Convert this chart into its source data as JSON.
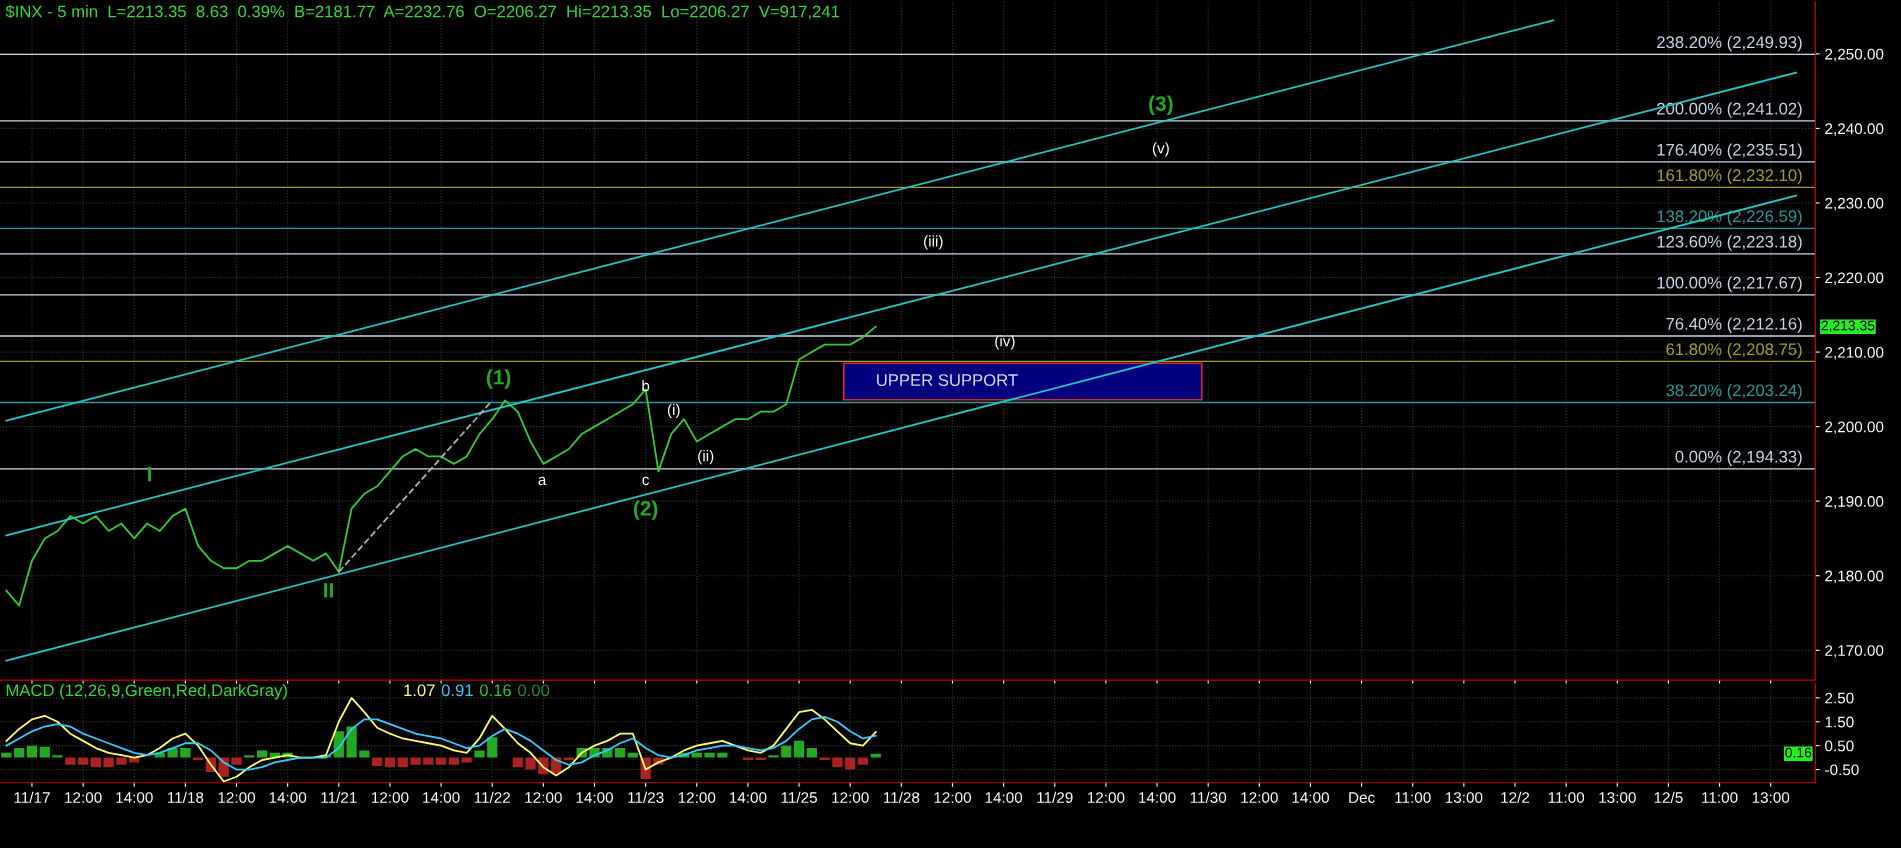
{
  "chart_data": [
    {
      "type": "line",
      "title": "$INX - 5 min  L=2213.35  8.63  0.39%  B=2181.77  A=2232.76  O=2206.27  Hi=2213.35  Lo=2206.27  V=917,241",
      "categories": [
        null,
        null,
        null,
        null,
        null,
        null,
        null,
        null,
        null,
        null,
        null,
        null,
        null,
        null,
        null,
        null,
        null,
        null,
        null,
        null,
        null,
        null,
        null,
        null,
        null,
        null,
        null,
        null,
        null,
        null,
        null,
        null,
        null,
        null,
        null,
        null,
        null,
        null,
        null,
        null,
        null,
        null,
        null,
        null,
        null,
        null,
        null,
        null,
        null,
        null,
        null,
        null,
        null,
        null,
        null,
        null,
        null,
        null,
        null,
        null,
        null,
        null,
        null,
        null,
        null,
        null,
        null,
        null,
        null,
        null,
        null,
        null,
        null,
        null,
        null,
        null,
        null,
        null,
        null,
        null,
        null,
        null,
        null,
        null,
        null,
        null,
        null,
        null,
        null,
        null,
        null,
        null,
        null,
        null,
        null,
        null,
        null,
        null,
        null,
        null,
        null,
        null,
        null,
        null,
        null,
        null,
        null,
        null,
        null,
        null,
        null,
        null,
        null,
        null,
        null,
        null,
        null,
        null,
        null,
        null,
        null,
        null,
        null,
        null,
        null,
        null,
        null,
        null,
        null,
        null,
        null,
        null,
        null,
        null,
        null,
        null,
        null,
        null,
        null,
        null,
        null,
        null
      ],
      "series": [
        {
          "color": "#33cc33",
          "values": [
            2178,
            2176,
            2182,
            2185,
            2186,
            2188,
            2187,
            2188,
            2186,
            2187,
            2185,
            2187,
            2186,
            2188,
            2189,
            2184,
            2182,
            2181,
            2181,
            2182,
            2182,
            2183,
            2184,
            2183,
            2182,
            2183,
            2180.5,
            2189,
            2191,
            2192,
            2194,
            2196,
            2197,
            2196,
            2196,
            2195,
            2196,
            2199,
            2201,
            2203.5,
            2202,
            2198,
            2195,
            2196,
            2197,
            2199,
            2200,
            2201,
            2202,
            2203,
            2205,
            2194,
            2199,
            2201,
            2198,
            2199,
            2200,
            2201,
            2201,
            2202,
            2202,
            2203,
            2209,
            2210,
            2211,
            2211,
            2211,
            2212,
            2213.4,
            null,
            null,
            null,
            null,
            null,
            null,
            null,
            null,
            null,
            null,
            null,
            null,
            null,
            null,
            null,
            null,
            null,
            null,
            null,
            null,
            null,
            null,
            null,
            null,
            null,
            null,
            null,
            null,
            null,
            null,
            null,
            null,
            null,
            null,
            null,
            null,
            null,
            null,
            null,
            null,
            null,
            null,
            null,
            null,
            null,
            null,
            null,
            null,
            null,
            null,
            null,
            null,
            null,
            null,
            null,
            null,
            null,
            null,
            null,
            null,
            null,
            null,
            null,
            null,
            null,
            null,
            null,
            null,
            null,
            null,
            null,
            null,
            null
          ]
        },
        {
          "type": "line",
          "color": "#20c8c8",
          "values": [
            2200.8,
            null,
            null,
            null,
            null,
            null,
            null,
            null,
            null,
            null,
            null,
            null,
            null,
            null,
            null,
            null,
            null,
            null,
            null,
            null,
            null,
            null,
            null,
            null,
            null,
            null,
            null,
            null,
            null,
            null,
            null,
            null,
            null,
            null,
            null,
            null,
            null,
            null,
            null,
            null,
            null,
            null,
            null,
            null,
            null,
            null,
            null,
            null,
            null,
            null,
            null,
            null,
            null,
            null,
            null,
            null,
            null,
            null,
            null,
            null,
            null,
            null,
            null,
            null,
            null,
            null,
            null,
            null,
            null,
            null,
            null,
            null,
            null,
            null,
            null,
            null,
            null,
            null,
            null,
            null,
            null,
            null,
            null,
            null,
            null,
            null,
            null,
            null,
            null,
            null,
            null,
            null,
            null,
            null,
            null,
            null,
            null,
            null,
            null,
            null,
            null,
            null,
            null,
            null,
            null,
            null,
            null,
            null,
            null,
            null,
            null,
            null,
            null,
            null,
            null,
            null,
            null,
            null,
            null,
            null,
            null,
            2254.5,
            null,
            null,
            null,
            null,
            null,
            null,
            null,
            null,
            null,
            null,
            null,
            null,
            null,
            null,
            null,
            null,
            null,
            null,
            null,
            null
          ]
        },
        {
          "type": "line",
          "color": "#20c8c8",
          "values": [
            2185.4,
            null,
            null,
            null,
            null,
            null,
            null,
            null,
            null,
            null,
            null,
            null,
            null,
            null,
            null,
            null,
            null,
            null,
            null,
            null,
            null,
            null,
            null,
            null,
            null,
            null,
            null,
            null,
            null,
            null,
            null,
            null,
            null,
            null,
            null,
            null,
            null,
            null,
            null,
            null,
            null,
            null,
            null,
            null,
            null,
            null,
            null,
            null,
            null,
            null,
            null,
            null,
            null,
            null,
            null,
            null,
            null,
            null,
            null,
            null,
            null,
            null,
            null,
            null,
            null,
            null,
            null,
            null,
            null,
            null,
            null,
            null,
            null,
            null,
            null,
            null,
            null,
            null,
            null,
            null,
            null,
            null,
            null,
            null,
            null,
            null,
            null,
            null,
            null,
            null,
            null,
            null,
            null,
            null,
            null,
            null,
            null,
            null,
            null,
            null,
            null,
            null,
            null,
            null,
            null,
            null,
            null,
            null,
            null,
            null,
            null,
            null,
            null,
            null,
            null,
            null,
            null,
            null,
            null,
            null,
            null,
            null,
            null,
            null,
            null,
            null,
            null,
            null,
            null,
            null,
            null,
            null,
            null,
            null,
            null,
            null,
            null,
            null,
            null,
            null,
            2247.5,
            null
          ]
        },
        {
          "type": "line",
          "color": "#20c8c8",
          "values": [
            2168.6,
            null,
            null,
            null,
            null,
            null,
            null,
            null,
            null,
            null,
            null,
            null,
            null,
            null,
            null,
            null,
            null,
            null,
            null,
            null,
            null,
            null,
            null,
            null,
            null,
            null,
            null,
            null,
            null,
            null,
            null,
            null,
            null,
            null,
            null,
            null,
            null,
            null,
            null,
            null,
            null,
            null,
            null,
            null,
            null,
            null,
            null,
            null,
            null,
            null,
            null,
            null,
            null,
            null,
            null,
            null,
            null,
            null,
            null,
            null,
            null,
            null,
            null,
            null,
            null,
            null,
            null,
            null,
            null,
            null,
            null,
            null,
            null,
            null,
            null,
            null,
            null,
            null,
            null,
            null,
            null,
            null,
            null,
            null,
            null,
            null,
            null,
            null,
            null,
            null,
            null,
            null,
            null,
            null,
            null,
            null,
            null,
            null,
            null,
            null,
            null,
            null,
            null,
            null,
            null,
            null,
            null,
            null,
            null,
            null,
            null,
            null,
            null,
            null,
            null,
            null,
            null,
            null,
            null,
            null,
            null,
            null,
            null,
            null,
            null,
            null,
            null,
            null,
            null,
            null,
            null,
            null,
            null,
            null,
            null,
            null,
            null,
            null,
            null,
            null,
            2231.0,
            null
          ]
        },
        {
          "type": "line",
          "color": "#b0b0b0",
          "line_style": "dashed",
          "values": [
            null,
            null,
            null,
            null,
            null,
            null,
            null,
            null,
            null,
            null,
            null,
            null,
            null,
            null,
            null,
            null,
            null,
            null,
            null,
            null,
            null,
            null,
            null,
            null,
            null,
            null,
            2180.5,
            null,
            null,
            null,
            null,
            null,
            null,
            null,
            null,
            null,
            null,
            null,
            2203.5,
            null,
            null,
            null,
            null,
            null,
            null,
            null,
            null,
            null,
            null,
            null,
            null,
            null,
            null,
            null,
            null,
            null,
            null,
            null,
            null,
            null,
            null,
            null,
            null,
            null,
            null,
            null,
            null,
            null,
            null,
            null,
            null,
            null,
            null,
            null,
            null,
            null,
            null,
            null,
            null,
            null,
            null,
            null,
            null,
            null,
            null,
            null,
            null,
            null,
            null,
            null,
            null,
            null,
            null,
            null,
            null,
            null,
            null,
            null,
            null,
            null,
            null,
            null,
            null,
            null,
            null,
            null,
            null,
            null,
            null,
            null,
            null,
            null,
            null,
            null,
            null,
            null,
            null,
            null,
            null,
            null,
            null,
            null,
            null,
            null,
            null,
            null,
            null,
            null,
            null,
            null,
            null,
            null,
            null,
            null,
            null,
            null,
            null,
            null,
            null,
            null,
            null,
            null
          ]
        }
      ],
      "ylim": [
        2166,
        2257
      ],
      "yticks": [
        {
          "value": 2170,
          "label": "2,170.00"
        },
        {
          "value": 2180,
          "label": "2,180.00"
        },
        {
          "value": 2190,
          "label": "2,190.00"
        },
        {
          "value": 2200,
          "label": "2,200.00"
        },
        {
          "value": 2210,
          "label": "2,210.00"
        },
        {
          "value": 2220,
          "label": "2,220.00"
        },
        {
          "value": 2230,
          "label": "2,230.00"
        },
        {
          "value": 2240,
          "label": "2,240.00"
        },
        {
          "value": 2250,
          "label": "2,250.00"
        }
      ],
      "ref_lines": [
        {
          "axis": "y",
          "value": 2249.93,
          "label": "238.20% (2,249.93)",
          "color": "#c8d8e8"
        },
        {
          "axis": "y",
          "value": 2241.02,
          "label": "200.00% (2,241.02)",
          "color": "#c8d8e8"
        },
        {
          "axis": "y",
          "value": 2235.51,
          "label": "176.40% (2,235.51)",
          "color": "#c8d8e8"
        },
        {
          "axis": "y",
          "value": 2232.1,
          "label": "161.80% (2,232.10)",
          "color": "#a0a030"
        },
        {
          "axis": "y",
          "value": 2226.59,
          "label": "138.20% (2,226.59)",
          "color": "#2a9a9a"
        },
        {
          "axis": "y",
          "value": 2223.18,
          "label": "123.60% (2,223.18)",
          "color": "#c8d8e8"
        },
        {
          "axis": "y",
          "value": 2217.67,
          "label": "100.00% (2,217.67)",
          "color": "#c8d8e8"
        },
        {
          "axis": "y",
          "value": 2212.16,
          "label": "76.40% (2,212.16)",
          "color": "#c8d8e8"
        },
        {
          "axis": "y",
          "value": 2208.75,
          "label": "61.80% (2,208.75)",
          "color": "#a0a030"
        },
        {
          "axis": "y",
          "value": 2203.24,
          "label": "38.20% (2,203.24)",
          "color": "#2a9a9a"
        },
        {
          "axis": "y",
          "value": 2194.33,
          "label": "0.00% (2,194.33)",
          "color": "#c8d8e8"
        }
      ],
      "bands": [
        {
          "axis": "y",
          "from": 2203.6,
          "to": 2208.5,
          "label": "UPPER SUPPORT",
          "color": "#00007f"
        }
      ],
      "annotations": [
        "I",
        "II",
        "(1)",
        "a",
        "b",
        "c",
        "(2)",
        "(i)",
        "(ii)",
        "(iii)",
        "(iv)",
        "(3)",
        "(v)",
        "2,213.35"
      ],
      "grid": true,
      "tick_labels": "y"
    },
    {
      "type": "line",
      "title": "MACD (12,26,9,Green,Red,DarkGray)",
      "categories": [
        null,
        null,
        "11/17",
        null,
        null,
        null,
        "12:00",
        null,
        null,
        null,
        "14:00",
        null,
        null,
        null,
        "11/18",
        null,
        null,
        null,
        "12:00",
        null,
        null,
        null,
        "14:00",
        null,
        null,
        null,
        "11/21",
        null,
        null,
        null,
        "12:00",
        null,
        null,
        null,
        "14:00",
        null,
        null,
        null,
        "11/22",
        null,
        null,
        null,
        "12:00",
        null,
        null,
        null,
        "14:00",
        null,
        null,
        null,
        "11/23",
        null,
        null,
        null,
        "12:00",
        null,
        null,
        null,
        "14:00",
        null,
        null,
        null,
        "11/25",
        null,
        null,
        null,
        "12:00",
        null,
        null,
        null,
        "11/28",
        null,
        null,
        null,
        "12:00",
        null,
        null,
        null,
        "14:00",
        null,
        null,
        null,
        "11/29",
        null,
        null,
        null,
        "12:00",
        null,
        null,
        null,
        "14:00",
        null,
        null,
        null,
        "11/30",
        null,
        null,
        null,
        "12:00",
        null,
        null,
        null,
        "14:00",
        null,
        null,
        null,
        "Dec",
        null,
        null,
        null,
        "11:00",
        null,
        null,
        null,
        "13:00",
        null,
        null,
        null,
        "12/2",
        null,
        null,
        null,
        "11:00",
        null,
        null,
        null,
        "13:00",
        null,
        null,
        null,
        "12/5",
        null,
        null,
        null,
        "11:00",
        null,
        null,
        null,
        "13:00",
        null,
        null,
        null
      ],
      "series": [
        {
          "type": "bar",
          "colors": [
            "#22aa22",
            "#22aa22",
            "#22aa22",
            "#22aa22",
            "#22aa22",
            "#aa2222",
            "#aa2222",
            "#aa2222",
            "#aa2222",
            "#aa2222",
            "#aa2222",
            "#22aa22",
            "#22aa22",
            "#22aa22",
            "#22aa22",
            "#aa2222",
            "#aa2222",
            "#aa2222",
            "#aa2222",
            "#22aa22",
            "#22aa22",
            "#22aa22",
            "#22aa22",
            "#22aa22",
            "#22aa22",
            "#22aa22",
            "#22aa22",
            "#22aa22",
            "#22aa22",
            "#aa2222",
            "#aa2222",
            "#aa2222",
            "#aa2222",
            "#aa2222",
            "#aa2222",
            "#aa2222",
            "#aa2222",
            "#22aa22",
            "#22aa22",
            "#22aa22",
            "#aa2222",
            "#aa2222",
            "#aa2222",
            "#aa2222",
            "#aa2222",
            "#22aa22",
            "#22aa22",
            "#22aa22",
            "#22aa22",
            "#22aa22",
            "#aa2222",
            "#aa2222",
            "#22aa22",
            "#22aa22",
            "#22aa22",
            "#22aa22",
            "#22aa22",
            "#22aa22",
            "#aa2222",
            "#aa2222",
            "#22aa22",
            "#22aa22",
            "#22aa22",
            "#22aa22",
            "#aa2222",
            "#aa2222",
            "#aa2222",
            "#aa2222",
            "#22aa22",
            null,
            null,
            null,
            null,
            null,
            null,
            null,
            null,
            null,
            null,
            null,
            null,
            null,
            null,
            null,
            null,
            null,
            null,
            null,
            null,
            null,
            null,
            null,
            null,
            null,
            null,
            null,
            null,
            null,
            null,
            null,
            null,
            null,
            null,
            null,
            null,
            null,
            null,
            null,
            null,
            null,
            null,
            null,
            null,
            null,
            null,
            null,
            null,
            null,
            null,
            null,
            null,
            null,
            null,
            null,
            null,
            null,
            null,
            null,
            null,
            null,
            null,
            null,
            null,
            null,
            null,
            null,
            null,
            null,
            null,
            null,
            null,
            null
          ],
          "values": [
            0.2,
            0.4,
            0.5,
            0.45,
            0.1,
            -0.3,
            -0.3,
            -0.4,
            -0.4,
            -0.3,
            -0.2,
            0.0,
            0.2,
            0.4,
            0.4,
            -0.1,
            -0.6,
            -0.8,
            -0.3,
            0.1,
            0.3,
            0.2,
            0.2,
            0.0,
            0.0,
            0.1,
            1.1,
            1.3,
            0.3,
            -0.35,
            -0.4,
            -0.4,
            -0.3,
            -0.3,
            -0.3,
            -0.3,
            -0.2,
            0.3,
            0.85,
            0.0,
            -0.4,
            -0.5,
            -0.7,
            -0.65,
            -0.1,
            0.4,
            0.4,
            0.4,
            0.4,
            0.2,
            -0.9,
            -0.3,
            0.0,
            0.2,
            0.2,
            0.2,
            0.2,
            0.0,
            -0.1,
            -0.1,
            0.1,
            0.5,
            0.7,
            0.4,
            -0.1,
            -0.4,
            -0.5,
            -0.3,
            0.16,
            null,
            null,
            null,
            null,
            null,
            null,
            null,
            null,
            null,
            null,
            null,
            null,
            null,
            null,
            null,
            null,
            null,
            null,
            null,
            null,
            null,
            null,
            null,
            null,
            null,
            null,
            null,
            null,
            null,
            null,
            null,
            null,
            null,
            null,
            null,
            null,
            null,
            null,
            null,
            null,
            null,
            null,
            null,
            null,
            null,
            null,
            null,
            null,
            null,
            null,
            null,
            null,
            null,
            null,
            null,
            null,
            null,
            null,
            null,
            null,
            null,
            null,
            null,
            null,
            null,
            null,
            null,
            null,
            null,
            null,
            null,
            null,
            null
          ]
        },
        {
          "type": "line",
          "color": "#ffff66",
          "values": [
            0.7,
            1.2,
            1.6,
            1.75,
            1.5,
            1.0,
            0.7,
            0.4,
            0.2,
            0.1,
            0.0,
            0.1,
            0.4,
            0.8,
            1.0,
            0.5,
            -0.3,
            -1.0,
            -0.8,
            -0.4,
            -0.1,
            0.0,
            0.1,
            0.0,
            0.0,
            0.1,
            1.5,
            2.5,
            1.9,
            1.25,
            1.0,
            0.8,
            0.7,
            0.6,
            0.5,
            0.3,
            0.2,
            0.8,
            1.75,
            1.2,
            0.6,
            0.2,
            -0.4,
            -0.75,
            -0.4,
            0.2,
            0.5,
            0.7,
            1.0,
            1.0,
            -0.5,
            -0.2,
            0.0,
            0.3,
            0.5,
            0.6,
            0.7,
            0.5,
            0.3,
            0.2,
            0.5,
            1.2,
            1.9,
            2.0,
            1.6,
            1.1,
            0.6,
            0.5,
            1.07,
            null,
            null,
            null,
            null,
            null,
            null,
            null,
            null,
            null,
            null,
            null,
            null,
            null,
            null,
            null,
            null,
            null,
            null,
            null,
            null,
            null,
            null,
            null,
            null,
            null,
            null,
            null,
            null,
            null,
            null,
            null,
            null,
            null,
            null,
            null,
            null,
            null,
            null,
            null,
            null,
            null,
            null,
            null,
            null,
            null,
            null,
            null,
            null,
            null,
            null,
            null,
            null,
            null,
            null,
            null,
            null,
            null,
            null,
            null,
            null,
            null,
            null,
            null,
            null,
            null,
            null,
            null,
            null,
            null,
            null,
            null,
            null,
            null
          ]
        },
        {
          "type": "line",
          "color": "#33ccff",
          "values": [
            0.5,
            0.8,
            1.1,
            1.3,
            1.4,
            1.3,
            1.0,
            0.8,
            0.6,
            0.4,
            0.2,
            0.1,
            0.2,
            0.4,
            0.6,
            0.6,
            0.3,
            -0.2,
            -0.5,
            -0.5,
            -0.4,
            -0.2,
            -0.1,
            0.0,
            0.0,
            0.0,
            0.4,
            1.2,
            1.6,
            1.6,
            1.4,
            1.2,
            1.0,
            0.9,
            0.8,
            0.6,
            0.4,
            0.5,
            0.9,
            1.2,
            1.0,
            0.7,
            0.3,
            -0.1,
            -0.3,
            -0.2,
            0.1,
            0.3,
            0.6,
            0.8,
            0.4,
            0.1,
            0.0,
            0.1,
            0.3,
            0.4,
            0.5,
            0.5,
            0.4,
            0.3,
            0.4,
            0.7,
            1.2,
            1.6,
            1.7,
            1.5,
            1.1,
            0.8,
            0.91,
            null,
            null,
            null,
            null,
            null,
            null,
            null,
            null,
            null,
            null,
            null,
            null,
            null,
            null,
            null,
            null,
            null,
            null,
            null,
            null,
            null,
            null,
            null,
            null,
            null,
            null,
            null,
            null,
            null,
            null,
            null,
            null,
            null,
            null,
            null,
            null,
            null,
            null,
            null,
            null,
            null,
            null,
            null,
            null,
            null,
            null,
            null,
            null,
            null,
            null,
            null,
            null,
            null,
            null,
            null,
            null,
            null,
            null,
            null,
            null,
            null,
            null,
            null,
            null,
            null,
            null,
            null,
            null,
            null,
            null,
            null,
            null,
            null
          ]
        }
      ],
      "ylim": [
        -1.05,
        3.1
      ],
      "yticks": [
        {
          "value": -0.5,
          "label": "-0.50"
        },
        {
          "value": 0.5,
          "label": "0.50"
        },
        {
          "value": 1.5,
          "label": "1.50"
        },
        {
          "value": 2.5,
          "label": "2.50"
        }
      ],
      "annotations": [
        "1.07",
        "0.91",
        "0.16",
        "0.00",
        "0.16"
      ],
      "grid": true
    }
  ]
}
